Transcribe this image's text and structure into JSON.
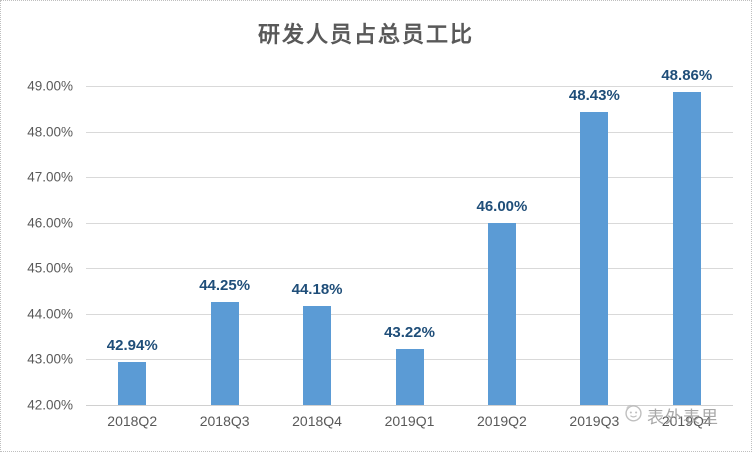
{
  "chart_data": {
    "type": "bar",
    "title": "研发人员占总员工比",
    "categories": [
      "2018Q2",
      "2018Q3",
      "2018Q4",
      "2019Q1",
      "2019Q2",
      "2019Q3",
      "2019Q4"
    ],
    "values": [
      42.94,
      44.25,
      44.18,
      43.22,
      46.0,
      48.43,
      48.86
    ],
    "value_labels": [
      "42.94%",
      "44.25%",
      "44.18%",
      "43.22%",
      "46.00%",
      "48.43%",
      "48.86%"
    ],
    "xlabel": "",
    "ylabel": "",
    "ylim": [
      42,
      49
    ],
    "ytick_step": 1,
    "ytick_labels": [
      "42.00%",
      "43.00%",
      "44.00%",
      "45.00%",
      "46.00%",
      "47.00%",
      "48.00%",
      "49.00%"
    ],
    "grid": true,
    "legend_position": "none",
    "bar_color": "#5b9bd5",
    "value_label_color": "#1f4e79",
    "axis_text_color": "#595959",
    "gridline_color": "#d9d9d9",
    "title_color": "#595959"
  },
  "watermark": {
    "icon": "face-logo-icon",
    "text": "表外表里",
    "color": "#9a9a9a"
  }
}
